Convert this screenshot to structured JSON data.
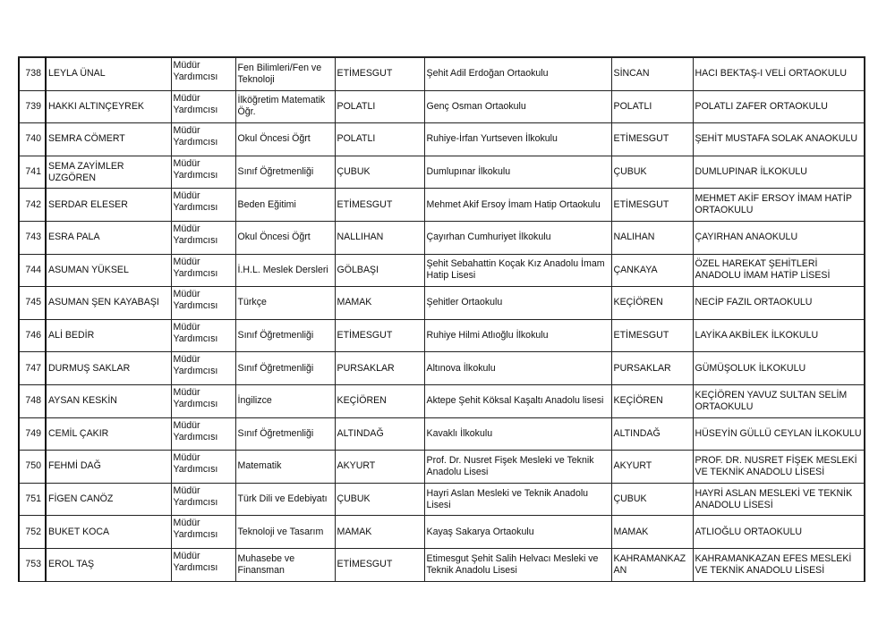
{
  "rows": [
    [
      "738",
      "LEYLA ÜNAL",
      "Müdür Yardımcısı",
      "Fen Bilimleri/Fen ve Teknoloji",
      "ETİMESGUT",
      "Şehit Adil Erdoğan Ortaokulu",
      "SİNCAN",
      "HACI BEKTAŞ-I VELİ ORTAOKULU"
    ],
    [
      "739",
      "HAKKI ALTINÇEYREK",
      "Müdür Yardımcısı",
      "İlköğretim Matematik Öğr.",
      "POLATLI",
      "Genç Osman Ortaokulu",
      "POLATLI",
      "POLATLI ZAFER ORTAOKULU"
    ],
    [
      "740",
      "SEMRA CÖMERT",
      "Müdür Yardımcısı",
      "Okul Öncesi Öğrt",
      "POLATLI",
      "Ruhiye-İrfan Yurtseven İlkokulu",
      "ETİMESGUT",
      "ŞEHİT MUSTAFA SOLAK ANAOKULU"
    ],
    [
      "741",
      "SEMA ZAYİMLER UZGÖREN",
      "Müdür Yardımcısı",
      "Sınıf Öğretmenliği",
      "ÇUBUK",
      "Dumlupınar İlkokulu",
      "ÇUBUK",
      "DUMLUPINAR İLKOKULU"
    ],
    [
      "742",
      "SERDAR ELESER",
      "Müdür Yardımcısı",
      "Beden Eğitimi",
      "ETİMESGUT",
      "Mehmet Akif Ersoy İmam Hatip Ortaokulu",
      "ETİMESGUT",
      "MEHMET AKİF ERSOY İMAM HATİP ORTAOKULU"
    ],
    [
      "743",
      "ESRA PALA",
      "Müdür Yardımcısı",
      "Okul Öncesi Öğrt",
      "NALLIHAN",
      "Çayırhan Cumhuriyet İlkokulu",
      "NALIHAN",
      "ÇAYIRHAN ANAOKULU"
    ],
    [
      "744",
      "ASUMAN YÜKSEL",
      "Müdür Yardımcısı",
      "İ.H.L. Meslek Dersleri",
      "GÖLBAŞI",
      "Şehit Sebahattin Koçak Kız Anadolu İmam Hatip Lisesi",
      "ÇANKAYA",
      "ÖZEL HAREKAT ŞEHİTLERİ ANADOLU İMAM HATİP LİSESİ"
    ],
    [
      "745",
      "ASUMAN ŞEN KAYABAŞI",
      "Müdür Yardımcısı",
      "Türkçe",
      "MAMAK",
      "Şehitler Ortaokulu",
      "KEÇİÖREN",
      "NECİP FAZIL ORTAOKULU"
    ],
    [
      "746",
      "ALİ BEDİR",
      "Müdür Yardımcısı",
      "Sınıf Öğretmenliği",
      "ETİMESGUT",
      "Ruhiye Hilmi Atlıoğlu İlkokulu",
      "ETİMESGUT",
      "LAYİKA AKBİLEK İLKOKULU"
    ],
    [
      "747",
      "DURMUŞ SAKLAR",
      "Müdür Yardımcısı",
      "Sınıf Öğretmenliği",
      "PURSAKLAR",
      "Altınova İlkokulu",
      "PURSAKLAR",
      "GÜMÜŞOLUK İLKOKULU"
    ],
    [
      "748",
      "AYSAN KESKİN",
      "Müdür Yardımcısı",
      "İngilizce",
      "KEÇİÖREN",
      "Aktepe Şehit Köksal Kaşaltı Anadolu lisesi",
      "KEÇİÖREN",
      "KEÇİÖREN YAVUZ SULTAN SELİM ORTAOKULU"
    ],
    [
      "749",
      "CEMİL ÇAKIR",
      "Müdür Yardımcısı",
      "Sınıf Öğretmenliği",
      "ALTINDAĞ",
      "Kavaklı İlkokulu",
      "ALTINDAĞ",
      "HÜSEYİN GÜLLÜ CEYLAN İLKOKULU"
    ],
    [
      "750",
      "FEHMİ DAĞ",
      "Müdür Yardımcısı",
      "Matematik",
      "AKYURT",
      "Prof. Dr. Nusret Fişek Mesleki ve Teknik Anadolu Lisesi",
      "AKYURT",
      "PROF. DR. NUSRET FİŞEK MESLEKİ VE TEKNİK ANADOLU LİSESİ"
    ],
    [
      "751",
      "FİGEN CANÖZ",
      "Müdür Yardımcısı",
      "Türk Dili ve Edebiyatı",
      "ÇUBUK",
      "Hayri Aslan Mesleki ve Teknik Anadolu Lisesi",
      "ÇUBUK",
      "HAYRİ ASLAN MESLEKİ VE TEKNİK ANADOLU LİSESİ"
    ],
    [
      "752",
      "BUKET KOCA",
      "Müdür Yardımcısı",
      "Teknoloji ve Tasarım",
      "MAMAK",
      "Kayaş Sakarya Ortaokulu",
      "MAMAK",
      "ATLIOĞLU ORTAOKULU"
    ],
    [
      "753",
      "EROL TAŞ",
      "Müdür Yardımcısı",
      "Muhasebe ve Finansman",
      "ETİMESGUT",
      "Etimesgut Şehit Salih Helvacı Mesleki ve Teknik Anadolu Lisesi",
      "KAHRAMANKAZAN",
      "KAHRAMANKAZAN EFES MESLEKİ VE TEKNİK ANADOLU LİSESİ"
    ]
  ]
}
